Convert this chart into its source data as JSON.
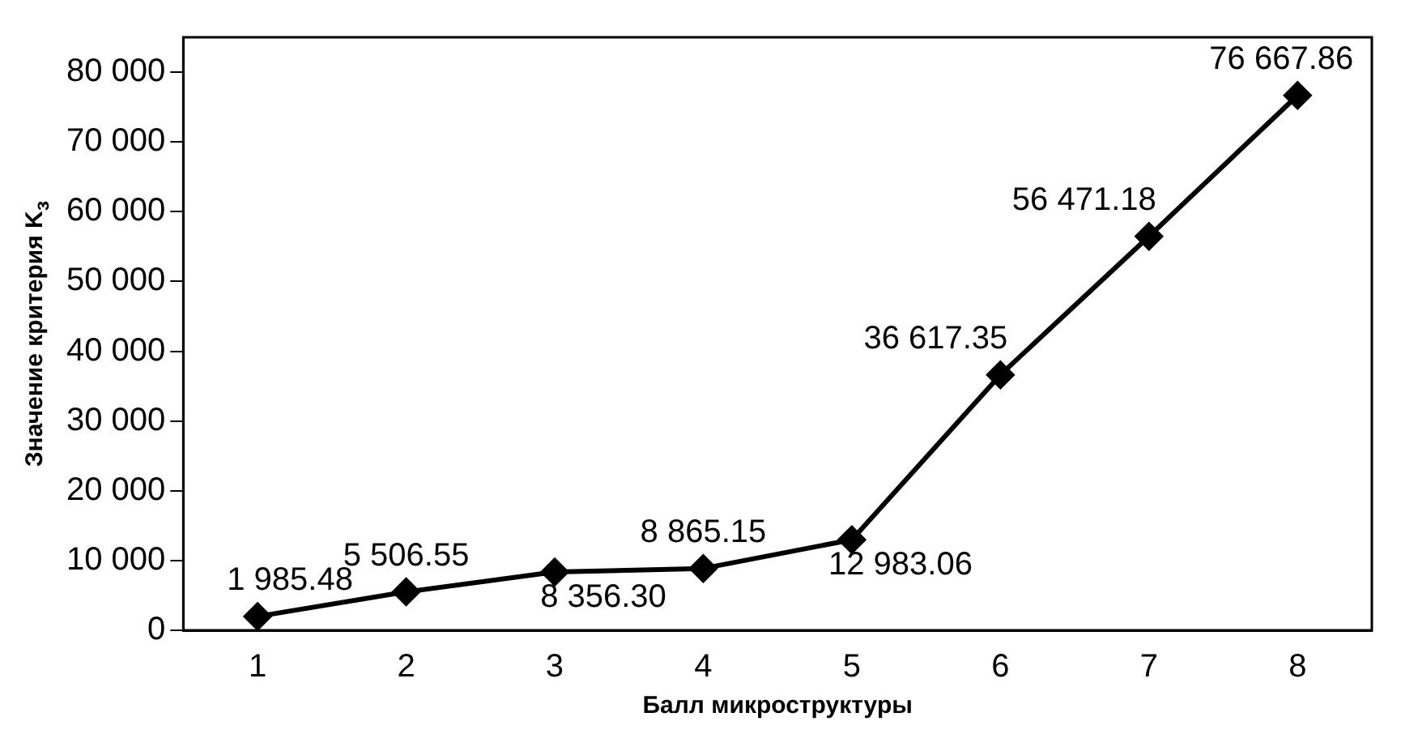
{
  "chart_data": {
    "type": "line",
    "xlabel": "Балл микроструктуры",
    "ylabel": "Значение критерия K$_{з}$",
    "categories": [
      "1",
      "2",
      "3",
      "4",
      "5",
      "6",
      "7",
      "8"
    ],
    "series": [
      {
        "color": "#000000",
        "values": [
          1985.48,
          5506.55,
          8356.3,
          8865.15,
          12983.06,
          36617.35,
          56471.18,
          76667.86
        ],
        "value_labels": [
          "1 985.48",
          "5 506.55",
          "8 356.30",
          "8 865.15",
          "12 983.06",
          "36 617.35",
          "56 471.18",
          "76 667.86"
        ]
      }
    ],
    "ylim": [
      0,
      85000
    ],
    "yticks": [
      {
        "value": 0,
        "label": "0"
      },
      {
        "value": 10000,
        "label": "10 000"
      },
      {
        "value": 20000,
        "label": "20 000"
      },
      {
        "value": 30000,
        "label": "30 000"
      },
      {
        "value": 40000,
        "label": "40 000"
      },
      {
        "value": 50000,
        "label": "50 000"
      },
      {
        "value": 60000,
        "label": "60 000"
      },
      {
        "value": 70000,
        "label": "70 000"
      },
      {
        "value": 80000,
        "label": "80 000"
      }
    ],
    "grid": false,
    "legend": false,
    "marker": "diamond",
    "line_style": "solid"
  }
}
